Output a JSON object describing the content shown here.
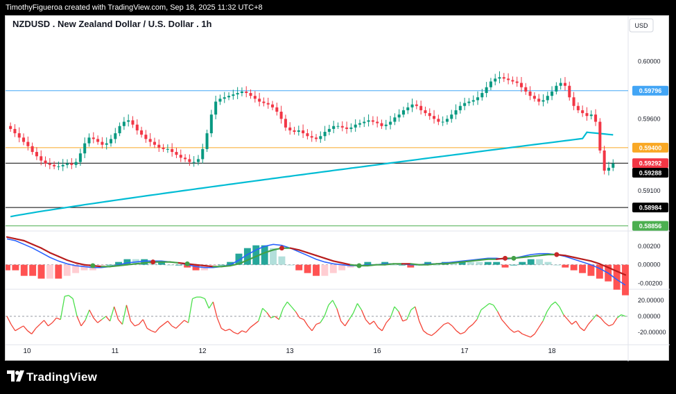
{
  "attribution": "TimothyFigueroa created with TradingView.com, Sep 18, 2025 11:32 UTC+8",
  "brand": {
    "name": "TradingView"
  },
  "chart_data": {
    "type": "candlestick",
    "title": "NZDUSD . New Zealand Dollar / U.S. Dollar . 1h",
    "symbol": "NZDUSD",
    "interval": "1h",
    "currency_label": "USD",
    "x_tick_labels": [
      "10",
      "11",
      "12",
      "13",
      "16",
      "17",
      "18"
    ],
    "price_panel": {
      "ylim": [
        0.5883,
        0.602
      ],
      "y_ticks": [
        "0.60000",
        "0.59600",
        "0.59100"
      ],
      "horizontal_levels": [
        {
          "value": 0.59796,
          "label": "0.59796",
          "color": "#42a5f5"
        },
        {
          "value": 0.594,
          "label": "0.59400",
          "color": "#f9a825"
        },
        {
          "value": 0.59292,
          "label": "0.59292",
          "color": "#000000",
          "badge_color": "#f23645"
        },
        {
          "value": 0.58984,
          "label": "0.58984",
          "color": "#000000"
        },
        {
          "value": 0.58856,
          "label": "0.58856",
          "color": "#4caf50"
        }
      ],
      "last_price": {
        "value": 0.59288,
        "label": "0.59288"
      },
      "closes": [
        0.5953,
        0.595,
        0.5947,
        0.5944,
        0.5941,
        0.5937,
        0.5934,
        0.5931,
        0.5929,
        0.5928,
        0.5927,
        0.5927,
        0.5928,
        0.5929,
        0.5928,
        0.593,
        0.5936,
        0.5943,
        0.5947,
        0.5946,
        0.5944,
        0.5942,
        0.5943,
        0.5946,
        0.595,
        0.5955,
        0.5958,
        0.5959,
        0.5956,
        0.5952,
        0.5949,
        0.5946,
        0.5944,
        0.5942,
        0.594,
        0.5939,
        0.5939,
        0.5937,
        0.5935,
        0.5933,
        0.5932,
        0.593,
        0.593,
        0.5932,
        0.5939,
        0.595,
        0.5963,
        0.5972,
        0.5974,
        0.5975,
        0.5976,
        0.5977,
        0.5978,
        0.5979,
        0.5978,
        0.5976,
        0.5974,
        0.5972,
        0.5971,
        0.597,
        0.5968,
        0.5965,
        0.596,
        0.5954,
        0.5952,
        0.5951,
        0.5952,
        0.595,
        0.5948,
        0.5947,
        0.5946,
        0.5948,
        0.5951,
        0.5953,
        0.5955,
        0.5955,
        0.5954,
        0.5953,
        0.5954,
        0.5956,
        0.5957,
        0.5958,
        0.5959,
        0.5958,
        0.5957,
        0.5955,
        0.5956,
        0.5958,
        0.5961,
        0.5963,
        0.5966,
        0.5968,
        0.597,
        0.5969,
        0.5966,
        0.5964,
        0.5962,
        0.596,
        0.5958,
        0.5958,
        0.596,
        0.5963,
        0.5966,
        0.5969,
        0.5971,
        0.5972,
        0.5973,
        0.5975,
        0.5978,
        0.5982,
        0.5986,
        0.5988,
        0.5989,
        0.5988,
        0.5987,
        0.5986,
        0.5985,
        0.5982,
        0.5979,
        0.5976,
        0.5974,
        0.5972,
        0.5973,
        0.5976,
        0.5979,
        0.5983,
        0.5985,
        0.5983,
        0.5975,
        0.5969,
        0.5966,
        0.5964,
        0.5962,
        0.5963,
        0.5958,
        0.5938,
        0.5924,
        0.5926,
        0.5929
      ]
    },
    "macd_panel": {
      "ylim": [
        -0.0025,
        0.0035
      ],
      "y_ticks": [
        "0.00200",
        "0.00000",
        "-0.00200"
      ],
      "macd": [
        0.0028,
        0.0026,
        0.0022,
        0.0018,
        0.0013,
        0.0008,
        0.0004,
        0.0001,
        -0.0001,
        -0.0002,
        -0.0003,
        -0.0003,
        -0.0002,
        0.0,
        0.0002,
        0.0003,
        0.0004,
        0.0004,
        0.0004,
        0.0003,
        0.0002,
        0.0,
        -0.0002,
        -0.0003,
        -0.0003,
        -0.0002,
        0.0,
        0.0005,
        0.0011,
        0.0016,
        0.002,
        0.0022,
        0.0021,
        0.0018,
        0.0014,
        0.001,
        0.0006,
        0.0003,
        0.0001,
        0.0,
        -0.0001,
        -0.0001,
        0.0,
        0.0,
        0.0001,
        0.0001,
        0.0001,
        0.0,
        0.0,
        0.0001,
        0.0001,
        0.0002,
        0.0003,
        0.0004,
        0.0005,
        0.0006,
        0.0007,
        0.0007,
        0.0006,
        0.0007,
        0.0009,
        0.0011,
        0.0012,
        0.0012,
        0.0011,
        0.0009,
        0.0006,
        0.0003,
        0.0,
        -0.0004,
        -0.0009,
        -0.0016,
        -0.0022
      ],
      "signal": [
        0.003,
        0.0028,
        0.0026,
        0.0022,
        0.0018,
        0.0013,
        0.0009,
        0.0005,
        0.0002,
        0.0,
        -0.0001,
        -0.0002,
        -0.0002,
        -0.0001,
        0.0,
        0.0001,
        0.0002,
        0.0003,
        0.0003,
        0.0003,
        0.0002,
        0.0001,
        0.0,
        -0.0001,
        -0.0002,
        -0.0002,
        -0.0001,
        0.0001,
        0.0005,
        0.0009,
        0.0013,
        0.0016,
        0.0018,
        0.0018,
        0.0016,
        0.0013,
        0.001,
        0.0007,
        0.0004,
        0.0002,
        0.0,
        -0.0001,
        -0.0001,
        0.0,
        0.0,
        0.0001,
        0.0001,
        0.0001,
        0.0,
        0.0,
        0.0001,
        0.0001,
        0.0002,
        0.0003,
        0.0004,
        0.0005,
        0.0006,
        0.0006,
        0.0007,
        0.0007,
        0.0008,
        0.0009,
        0.001,
        0.0011,
        0.0011,
        0.001,
        0.0008,
        0.0006,
        0.0004,
        0.0001,
        -0.0003,
        -0.0007,
        -0.0011
      ],
      "cross_markers": [
        {
          "index": 10,
          "type": "bullish"
        },
        {
          "index": 17,
          "type": "bearish"
        },
        {
          "index": 21,
          "type": "bullish"
        },
        {
          "index": 32,
          "type": "bearish"
        },
        {
          "index": 41,
          "type": "bullish"
        },
        {
          "index": 58,
          "type": "bearish"
        },
        {
          "index": 59,
          "type": "bullish"
        },
        {
          "index": 64,
          "type": "bearish"
        }
      ]
    },
    "oscillator_panel": {
      "ylim": [
        -32,
        32
      ],
      "y_ticks": [
        "20.00000",
        "0.00000",
        "-20.00000"
      ],
      "values": [
        0,
        -10,
        -18,
        -15,
        -12,
        -18,
        -22,
        -15,
        -10,
        -5,
        -12,
        -8,
        -2,
        -4,
        25,
        26,
        22,
        0,
        -12,
        -5,
        8,
        -2,
        -8,
        -4,
        0,
        -6,
        12,
        -4,
        -10,
        14,
        -6,
        -12,
        -10,
        -4,
        -15,
        -18,
        -20,
        -14,
        -10,
        -6,
        -12,
        -15,
        -10,
        -5,
        -8,
        22,
        24,
        24,
        22,
        10,
        18,
        -2,
        -15,
        -18,
        -16,
        -20,
        -22,
        -18,
        -20,
        -14,
        -10,
        -6,
        10,
        5,
        -2,
        0,
        -4,
        10,
        18,
        12,
        6,
        -2,
        -4,
        -12,
        -18,
        -10,
        -8,
        0,
        14,
        20,
        10,
        -6,
        -12,
        -4,
        4,
        16,
        8,
        -4,
        -10,
        -6,
        -14,
        -18,
        -8,
        -2,
        12,
        6,
        -6,
        -4,
        8,
        12,
        -6,
        -18,
        -22,
        -24,
        -20,
        -15,
        -10,
        -8,
        -12,
        -18,
        -22,
        -20,
        -14,
        -10,
        -4,
        8,
        12,
        16,
        14,
        6,
        -4,
        -10,
        -16,
        -20,
        -18,
        -22,
        -24,
        -26,
        -22,
        -14,
        -6,
        6,
        14,
        18,
        12,
        2,
        -4,
        -10,
        -6,
        -14,
        -18,
        -10,
        -4,
        2,
        -2,
        -8,
        -12,
        -10,
        -2,
        2,
        0
      ],
      "bullish_color": "#4be04b",
      "bearish_color": "#f44336"
    },
    "colors": {
      "up_candle": "#089981",
      "down_candle": "#f23645",
      "moving_average": "#00bcd4",
      "macd_line": "#2962ff",
      "signal_line_bear": "#b71c1c",
      "signal_line_bull": "#43a047"
    }
  }
}
